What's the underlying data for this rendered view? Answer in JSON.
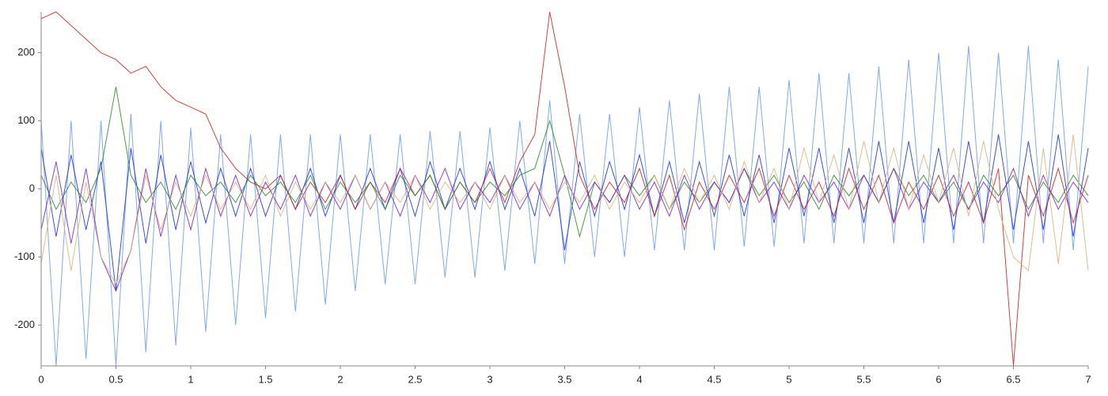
{
  "chart_data": {
    "type": "line",
    "x": [
      0,
      0.1,
      0.2,
      0.3,
      0.4,
      0.5,
      0.6,
      0.7,
      0.8,
      0.9,
      1,
      1.1,
      1.2,
      1.3,
      1.4,
      1.5,
      1.6,
      1.7,
      1.8,
      1.9,
      2,
      2.1,
      2.2,
      2.3,
      2.4,
      2.5,
      2.6,
      2.7,
      2.8,
      2.9,
      3,
      3.1,
      3.2,
      3.3,
      3.4,
      3.5,
      3.6,
      3.7,
      3.8,
      3.9,
      4,
      4.1,
      4.2,
      4.3,
      4.4,
      4.5,
      4.6,
      4.7,
      4.8,
      4.9,
      5,
      5.1,
      5.2,
      5.3,
      5.4,
      5.5,
      5.6,
      5.7,
      5.8,
      5.9,
      6,
      6.1,
      6.2,
      6.3,
      6.4,
      6.5,
      6.6,
      6.7,
      6.8,
      6.9,
      7
    ],
    "series": [
      {
        "color": "#6b9af0",
        "values": [
          100,
          -260,
          100,
          -250,
          100,
          -260,
          110,
          -240,
          100,
          -230,
          90,
          -210,
          80,
          -200,
          80,
          -190,
          80,
          -180,
          80,
          -170,
          80,
          -150,
          80,
          -140,
          80,
          -140,
          85,
          -130,
          85,
          -130,
          90,
          -120,
          100,
          -110,
          130,
          -110,
          110,
          -100,
          110,
          -100,
          120,
          -90,
          130,
          -90,
          140,
          -90,
          150,
          -85,
          150,
          -85,
          160,
          -80,
          170,
          -80,
          170,
          -80,
          180,
          -80,
          190,
          -80,
          200,
          -80,
          210,
          -80,
          200,
          -80,
          210,
          -80,
          190,
          -90,
          180
        ]
      },
      {
        "color": "#1a2ee8",
        "values": [
          60,
          -70,
          50,
          -60,
          40,
          -150,
          60,
          -80,
          50,
          -60,
          40,
          -50,
          30,
          -40,
          30,
          -40,
          20,
          -30,
          30,
          -40,
          20,
          -30,
          30,
          -30,
          30,
          -40,
          40,
          -30,
          30,
          -30,
          40,
          -30,
          30,
          -40,
          70,
          -90,
          40,
          -40,
          40,
          -30,
          50,
          -40,
          40,
          -50,
          40,
          -40,
          50,
          -40,
          50,
          -50,
          60,
          -40,
          60,
          -50,
          60,
          -50,
          70,
          -50,
          70,
          -50,
          60,
          -60,
          70,
          -50,
          80,
          -60,
          70,
          -60,
          80,
          -70,
          60
        ]
      },
      {
        "color": "#cc2020",
        "values": [
          250,
          260,
          240,
          220,
          200,
          190,
          170,
          180,
          150,
          130,
          120,
          110,
          60,
          30,
          10,
          0,
          20,
          -30,
          10,
          -20,
          20,
          -30,
          10,
          -20,
          30,
          -10,
          20,
          -30,
          10,
          -20,
          30,
          -20,
          40,
          80,
          260,
          150,
          20,
          -30,
          10,
          -20,
          30,
          -40,
          20,
          -60,
          10,
          -30,
          20,
          -20,
          30,
          -40,
          20,
          -30,
          10,
          -40,
          30,
          -30,
          20,
          -50,
          10,
          -30,
          20,
          -40,
          10,
          -50,
          30,
          -260,
          20,
          -40,
          30,
          -50,
          20
        ]
      },
      {
        "color": "#2a8a2a",
        "values": [
          20,
          -30,
          10,
          -20,
          30,
          150,
          20,
          -20,
          10,
          -30,
          20,
          -10,
          10,
          -20,
          20,
          -10,
          10,
          -20,
          20,
          -30,
          10,
          -20,
          10,
          -30,
          20,
          -10,
          20,
          -30,
          10,
          -20,
          10,
          -10,
          20,
          30,
          100,
          20,
          -70,
          10,
          -20,
          20,
          -10,
          20,
          -30,
          10,
          -20,
          10,
          -20,
          30,
          -10,
          20,
          -20,
          10,
          -30,
          20,
          -10,
          20,
          -20,
          30,
          -10,
          20,
          -20,
          10,
          -30,
          20,
          -10,
          20,
          -30,
          10,
          -20,
          20,
          -10
        ]
      },
      {
        "color": "#7a22c8",
        "values": [
          -60,
          40,
          -80,
          30,
          -100,
          -150,
          -90,
          30,
          -70,
          20,
          -60,
          30,
          -40,
          20,
          -40,
          10,
          -30,
          20,
          -40,
          10,
          -30,
          20,
          -30,
          10,
          -40,
          20,
          -20,
          30,
          -30,
          10,
          -20,
          20,
          -30,
          10,
          -40,
          20,
          -30,
          10,
          -20,
          20,
          -30,
          10,
          -40,
          20,
          -30,
          10,
          -20,
          30,
          -20,
          10,
          -30,
          20,
          -20,
          10,
          -30,
          20,
          -20,
          30,
          -30,
          10,
          -20,
          20,
          -30,
          10,
          -20,
          30,
          -40,
          20,
          -30,
          10,
          -20
        ]
      },
      {
        "color": "#d9b27a",
        "values": [
          -110,
          20,
          -120,
          10,
          -100,
          -140,
          -90,
          20,
          -60,
          10,
          -40,
          20,
          -30,
          10,
          -30,
          20,
          -40,
          10,
          -30,
          10,
          -20,
          20,
          -30,
          10,
          -20,
          20,
          -30,
          10,
          -20,
          10,
          -30,
          20,
          -20,
          10,
          -30,
          10,
          -20,
          20,
          -30,
          10,
          -20,
          20,
          -30,
          30,
          -20,
          20,
          -30,
          40,
          -20,
          30,
          -30,
          60,
          -20,
          50,
          -30,
          70,
          -20,
          60,
          -30,
          50,
          -20,
          60,
          -40,
          70,
          -30,
          -100,
          -120,
          60,
          -110,
          80,
          -120
        ]
      }
    ],
    "xlim": [
      0,
      7
    ],
    "ylim": [
      -260,
      260
    ],
    "xticks": [
      0,
      0.5,
      1,
      1.5,
      2,
      2.5,
      3,
      3.5,
      4,
      4.5,
      5,
      5.5,
      6,
      6.5,
      7
    ],
    "yticks": [
      -200,
      -100,
      0,
      100,
      200
    ],
    "grid": false
  }
}
